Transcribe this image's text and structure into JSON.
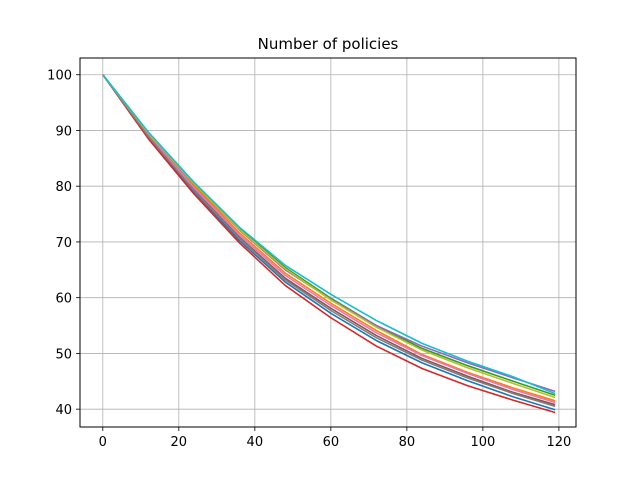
{
  "chart_data": {
    "type": "line",
    "title": "Number of policies",
    "xlabel": "",
    "ylabel": "",
    "xlim": [
      -6,
      124.5
    ],
    "ylim": [
      36.8,
      103
    ],
    "xticks": [
      0,
      20,
      40,
      60,
      80,
      100,
      120
    ],
    "yticks": [
      40,
      50,
      60,
      70,
      80,
      90,
      100
    ],
    "grid": true,
    "legend": "none",
    "x": [
      0,
      12,
      24,
      36,
      48,
      60,
      72,
      84,
      96,
      108,
      119
    ],
    "series": [
      {
        "color": "#1f77b4",
        "values": [
          100,
          88.8,
          79.0,
          70.2,
          62.8,
          57.2,
          52.3,
          48.3,
          45.1,
          42.2,
          39.9
        ]
      },
      {
        "color": "#ff7f0e",
        "values": [
          100,
          89.2,
          80.0,
          71.6,
          64.4,
          59.0,
          54.1,
          49.8,
          46.6,
          43.8,
          41.5
        ]
      },
      {
        "color": "#2ca02c",
        "values": [
          100,
          89.6,
          80.6,
          72.4,
          65.4,
          59.9,
          55.0,
          50.9,
          47.8,
          45.0,
          42.5
        ]
      },
      {
        "color": "#d62728",
        "values": [
          100,
          88.5,
          78.6,
          69.8,
          62.2,
          56.4,
          51.3,
          47.3,
          44.2,
          41.6,
          39.4
        ]
      },
      {
        "color": "#9467bd",
        "values": [
          100,
          89.4,
          80.3,
          72.1,
          65.0,
          59.7,
          55.0,
          51.3,
          48.3,
          45.6,
          43.2
        ]
      },
      {
        "color": "#8c564b",
        "values": [
          100,
          89.0,
          79.4,
          70.8,
          63.5,
          58.1,
          53.2,
          49.1,
          45.9,
          43.0,
          40.8
        ]
      },
      {
        "color": "#e377c2",
        "values": [
          100,
          89.1,
          79.7,
          71.2,
          64.0,
          58.6,
          53.7,
          49.6,
          46.4,
          43.5,
          41.2
        ]
      },
      {
        "color": "#7f7f7f",
        "values": [
          100,
          88.9,
          79.2,
          70.6,
          63.2,
          57.7,
          52.8,
          48.8,
          45.6,
          42.8,
          40.5
        ]
      },
      {
        "color": "#bcbd22",
        "values": [
          100,
          89.5,
          80.4,
          72.2,
          65.2,
          59.6,
          54.7,
          50.6,
          47.4,
          44.6,
          42.1
        ]
      },
      {
        "color": "#17becf",
        "values": [
          100,
          89.7,
          80.7,
          72.6,
          65.8,
          60.6,
          55.9,
          51.8,
          48.6,
          45.8,
          42.8
        ]
      }
    ]
  }
}
